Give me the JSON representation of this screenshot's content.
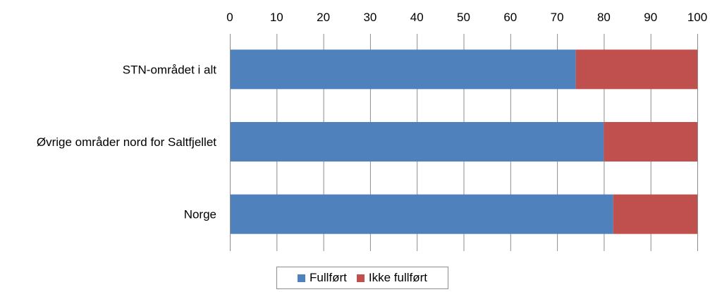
{
  "chart_data": {
    "type": "bar",
    "orientation": "horizontal",
    "stacked": true,
    "categories": [
      "STN-området i alt",
      "Øvrige områder nord for Saltfjellet",
      "Norge"
    ],
    "series": [
      {
        "name": "Fullført",
        "color": "#4f81bd",
        "values": [
          74,
          80,
          82
        ]
      },
      {
        "name": "Ikke fullført",
        "color": "#c0504d",
        "values": [
          26,
          20,
          18
        ]
      }
    ],
    "xlim": [
      0,
      100
    ],
    "xticks": [
      0,
      10,
      20,
      30,
      40,
      50,
      60,
      70,
      80,
      90,
      100
    ],
    "x_axis_position": "top",
    "grid": true,
    "legend_position": "bottom"
  }
}
